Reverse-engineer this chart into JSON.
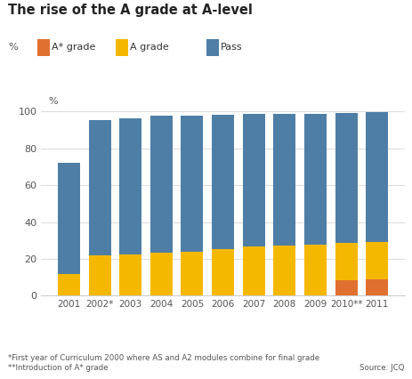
{
  "title": "The rise of the A grade at A-level",
  "ylabel": "%",
  "years": [
    "2001",
    "2002*",
    "2003",
    "2004",
    "2005",
    "2006",
    "2007",
    "2008",
    "2009",
    "2010**",
    "2011"
  ],
  "a_star": [
    0,
    0,
    0,
    0,
    0,
    0,
    0,
    0,
    0,
    8.5,
    8.8
  ],
  "a_grade": [
    11.5,
    22.0,
    22.5,
    23.5,
    24.0,
    25.5,
    26.5,
    27.0,
    27.5,
    20.0,
    20.5
  ],
  "pass": [
    60.5,
    73.5,
    74.0,
    74.5,
    74.0,
    73.0,
    72.5,
    72.0,
    71.5,
    71.0,
    70.5
  ],
  "color_astar": "#E07030",
  "color_a": "#F5B800",
  "color_pass": "#4E7EA6",
  "footnote1": "*First year of Curriculum 2000 where AS and A2 modules combine for final grade",
  "footnote2": "**Introduction of A* grade",
  "source": "Source: JCQ",
  "ylim": [
    0,
    103
  ],
  "yticks": [
    0,
    20,
    40,
    60,
    80,
    100
  ],
  "background_color": "#ffffff",
  "grid_color": "#dddddd"
}
